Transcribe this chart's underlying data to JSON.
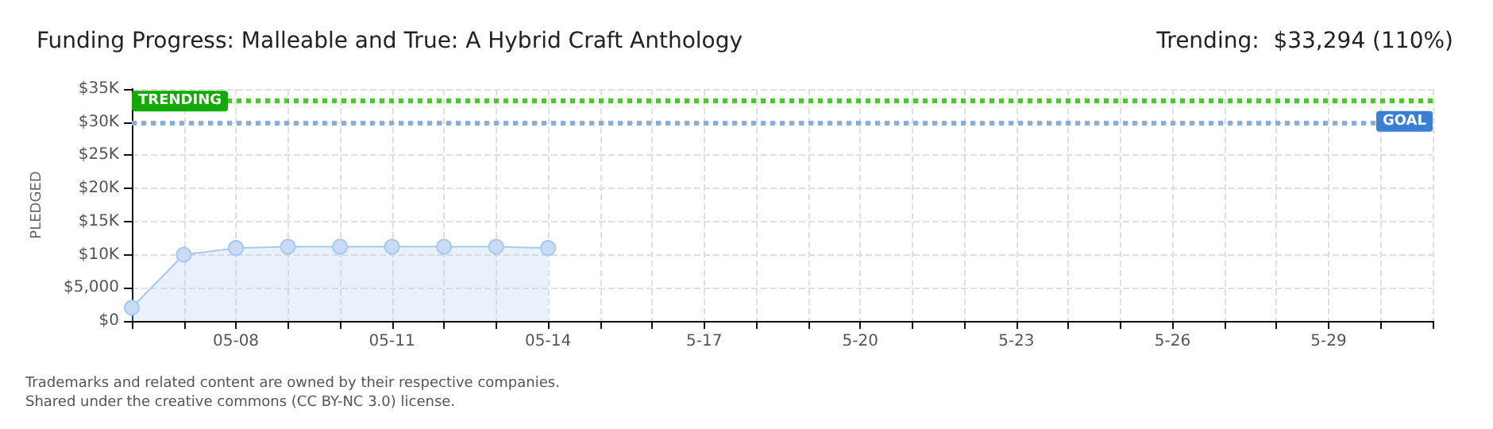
{
  "chart_data": {
    "type": "area",
    "title": "Funding Progress: Malleable and True: A Hybrid Craft Anthology",
    "subtitle": "Trending:  $33,294 (110%)",
    "ylabel": "PLEDGED",
    "categories": [
      null,
      null,
      "05-08",
      null,
      null,
      "05-11",
      null,
      null,
      "05-14",
      null,
      null,
      "5-17",
      null,
      null,
      "5-20",
      null,
      null,
      "5-23",
      null,
      null,
      "5-26",
      null,
      null,
      "5-29",
      null,
      null
    ],
    "series": [
      {
        "color": "#a8c8ee",
        "values": [
          2000,
          10000,
          11000,
          11200,
          11200,
          11200,
          11200,
          11200,
          11000,
          null,
          null,
          null,
          null,
          null,
          null,
          null,
          null,
          null,
          null,
          null,
          null,
          null,
          null,
          null,
          null,
          null
        ]
      }
    ],
    "ylim": [
      0,
      35000
    ],
    "yticks": [
      {
        "value": 0,
        "label": "$0"
      },
      {
        "value": 5000,
        "label": "$5,000"
      },
      {
        "value": 10000,
        "label": "$10K"
      },
      {
        "value": 15000,
        "label": "$15K"
      },
      {
        "value": 20000,
        "label": "$20K"
      },
      {
        "value": 25000,
        "label": "$25K"
      },
      {
        "value": 30000,
        "label": "$30K"
      },
      {
        "value": 35000,
        "label": "$35K"
      }
    ],
    "ref_lines": [
      {
        "axis": "y",
        "value": 33294,
        "label": "TRENDING",
        "color": "#44cc22",
        "line_style": "dotted"
      },
      {
        "axis": "y",
        "value": 30000,
        "label": "GOAL",
        "color": "#8aaedb",
        "line_style": "dotted"
      }
    ],
    "grid": true,
    "marker": "circle",
    "annotations": [
      "Trademarks and related content are owned by their respective companies.",
      "Shared under the creative commons (CC BY-NC 3.0) license."
    ]
  }
}
